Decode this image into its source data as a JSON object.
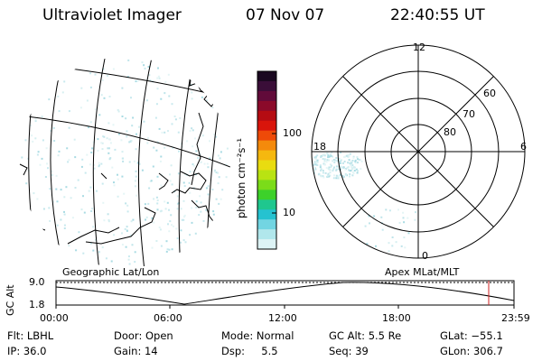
{
  "header": {
    "instrument": "Ultraviolet Imager",
    "date": "07 Nov 07",
    "time": "22:40:55 UT"
  },
  "colorbar": {
    "unit_label": "photon cm⁻²s⁻¹",
    "ticks": [
      "100",
      "10"
    ],
    "colors": [
      "#1a0820",
      "#3a0e38",
      "#610b3a",
      "#8b0a2a",
      "#b50c12",
      "#d9150b",
      "#ee4a08",
      "#f48a0c",
      "#f5b80f",
      "#e9dc10",
      "#b9e312",
      "#7bdc19",
      "#3dd12a",
      "#1fc78e",
      "#25c2d0",
      "#72d5e2",
      "#b1e7ec",
      "#ddf3f5"
    ]
  },
  "globe_panel": {
    "label": "Geographic Lat/Lon"
  },
  "polar_panel": {
    "label": "Apex MLat/MLT",
    "mlt_labels": [
      "12",
      "18",
      "6",
      "0"
    ],
    "lat_labels": [
      "60",
      "70",
      "80"
    ]
  },
  "altitude_strip": {
    "axis_label": "GC Alt",
    "y_ticks": [
      "9.0",
      "1.8"
    ],
    "x_ticks": [
      "00:00",
      "06:00",
      "12:00",
      "18:00",
      "23:59"
    ],
    "marker_color": "#cc2222"
  },
  "info": {
    "flt": "Flt: LBHL",
    "ip": "IP: 36.0",
    "door": "Door: Open",
    "gain": "Gain: 14",
    "mode": "Mode: Normal",
    "dsp": "Dsp:     5.5",
    "gc_alt": "GC Alt: 5.5 Re",
    "seq": "Seq: 39",
    "glat": "GLat: −55.1",
    "glon": "GLon: 306.7"
  }
}
